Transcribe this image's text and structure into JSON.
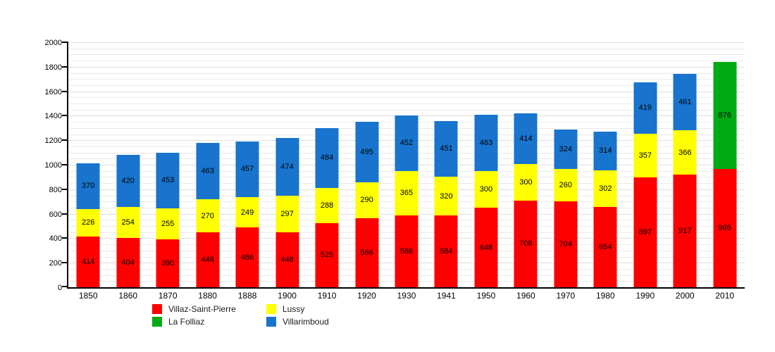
{
  "chart_data": {
    "type": "bar",
    "stacked": true,
    "title": "",
    "xlabel": "",
    "ylabel": "",
    "ylim": [
      0,
      2000
    ],
    "ytick_step": 200,
    "minor_grid_step": 50,
    "grid": true,
    "legend_position": "bottom",
    "categories": [
      "1850",
      "1860",
      "1870",
      "1880",
      "1888",
      "1900",
      "1910",
      "1920",
      "1930",
      "1941",
      "1950",
      "1960",
      "1970",
      "1980",
      "1990",
      "2000",
      "2010"
    ],
    "series": [
      {
        "name": "Villaz-Saint-Pierre",
        "color": "#ff0000",
        "values": [
          414,
          404,
          390,
          446,
          486,
          448,
          525,
          566,
          586,
          584,
          648,
          708,
          704,
          654,
          897,
          917,
          965
        ]
      },
      {
        "name": "Lussy",
        "color": "#ffff00",
        "values": [
          226,
          254,
          255,
          270,
          249,
          297,
          288,
          290,
          365,
          320,
          300,
          300,
          260,
          302,
          357,
          366,
          null
        ]
      },
      {
        "name": "Villarimboud",
        "color": "#1874cd",
        "values": [
          370,
          420,
          453,
          463,
          457,
          474,
          484,
          495,
          452,
          451,
          463,
          414,
          324,
          314,
          419,
          461,
          null
        ]
      },
      {
        "name": "La Folliaz",
        "color": "#00aa14",
        "values": [
          null,
          null,
          null,
          null,
          null,
          null,
          null,
          null,
          null,
          null,
          null,
          null,
          null,
          null,
          null,
          null,
          876
        ]
      }
    ],
    "legend": [
      {
        "label": "Villaz-Saint-Pierre",
        "color": "#ff0000"
      },
      {
        "label": "Lussy",
        "color": "#ffff00"
      },
      {
        "label": "La Folliaz",
        "color": "#00aa14"
      },
      {
        "label": "Villarimboud",
        "color": "#1874cd"
      }
    ]
  }
}
